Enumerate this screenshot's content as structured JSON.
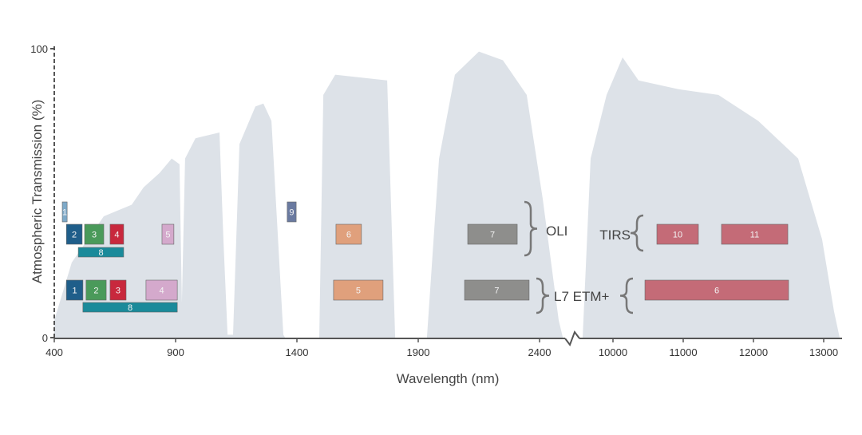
{
  "chart_data": {
    "type": "area",
    "xlabel": "Wavelength (nm)",
    "ylabel": "Atmospheric Transmission (%)",
    "ylim": [
      0,
      100
    ],
    "y_ticks": [
      "0",
      "100"
    ],
    "x_ticks_left": [
      400,
      900,
      1400,
      1900,
      2400
    ],
    "x_ticks_right": [
      10000,
      11000,
      12000,
      13000
    ],
    "axis_break": true,
    "colors": {
      "transmission": "#dde2e8",
      "axis": "#555555"
    },
    "transmission_left": [
      [
        400,
        0
      ],
      [
        400,
        6
      ],
      [
        472,
        26
      ],
      [
        604,
        42
      ],
      [
        719,
        46
      ],
      [
        768,
        52
      ],
      [
        834,
        57
      ],
      [
        884,
        62
      ],
      [
        916,
        60
      ],
      [
        926,
        12
      ],
      [
        939,
        62
      ],
      [
        982,
        69
      ],
      [
        1081,
        71
      ],
      [
        1097,
        34
      ],
      [
        1114,
        1
      ],
      [
        1137,
        1
      ],
      [
        1163,
        67
      ],
      [
        1229,
        80
      ],
      [
        1262,
        81
      ],
      [
        1295,
        75
      ],
      [
        1344,
        1
      ],
      [
        1351,
        0
      ],
      [
        1492,
        0
      ],
      [
        1509,
        84
      ],
      [
        1558,
        91
      ],
      [
        1772,
        89
      ],
      [
        1805,
        0
      ],
      [
        1936,
        0
      ],
      [
        1986,
        62
      ],
      [
        2051,
        91
      ],
      [
        2150,
        99
      ],
      [
        2249,
        96
      ],
      [
        2347,
        84
      ],
      [
        2413,
        48
      ],
      [
        2479,
        6
      ],
      [
        2496,
        0
      ]
    ],
    "transmission_right": [
      [
        9568,
        0
      ],
      [
        9682,
        62
      ],
      [
        9909,
        84
      ],
      [
        10136,
        97
      ],
      [
        10364,
        89
      ],
      [
        10932,
        86
      ],
      [
        11500,
        84
      ],
      [
        12068,
        75
      ],
      [
        12636,
        62
      ],
      [
        12977,
        34
      ],
      [
        13148,
        9
      ],
      [
        13227,
        0
      ]
    ],
    "groups": [
      {
        "label": "OLI",
        "bands": [
          {
            "name": "1",
            "range": [
              433,
              453
            ],
            "color": "#7ea9c8",
            "row": "top"
          },
          {
            "name": "2",
            "range": [
              450,
              515
            ],
            "color": "#1f5e8a",
            "row": "mid"
          },
          {
            "name": "3",
            "range": [
              525,
              604
            ],
            "color": "#4a9a5a",
            "row": "mid"
          },
          {
            "name": "4",
            "range": [
              630,
              686
            ],
            "color": "#c8283d",
            "row": "mid"
          },
          {
            "name": "5",
            "range": [
              844,
              893
            ],
            "color": "#d4a9cc",
            "row": "mid"
          },
          {
            "name": "8",
            "range": [
              499,
              686
            ],
            "color": "#1a8a9a",
            "row": "low"
          },
          {
            "name": "9",
            "range": [
              1360,
              1397
            ],
            "color": "#6a7aa0",
            "row": "top"
          },
          {
            "name": "6",
            "range": [
              1561,
              1666
            ],
            "color": "#e0a07c",
            "row": "mid"
          },
          {
            "name": "7",
            "range": [
              2104,
              2308
            ],
            "color": "#8e8e8c",
            "row": "mid"
          }
        ]
      },
      {
        "label": "TIRS",
        "bands": [
          {
            "name": "10",
            "range": [
              10625,
              11216
            ],
            "color": "#c46b77",
            "row": "mid"
          },
          {
            "name": "11",
            "range": [
              11545,
              12489
            ],
            "color": "#c46b77",
            "row": "mid"
          }
        ]
      },
      {
        "label": "L7 ETM+",
        "bands": [
          {
            "name": "1",
            "range": [
              450,
              518
            ],
            "color": "#1f5e8a",
            "row": "mid"
          },
          {
            "name": "2",
            "range": [
              531,
              614
            ],
            "color": "#4a9a5a",
            "row": "mid"
          },
          {
            "name": "3",
            "range": [
              630,
              696
            ],
            "color": "#c8283d",
            "row": "mid"
          },
          {
            "name": "4",
            "range": [
              778,
              907
            ],
            "color": "#d4a9cc",
            "row": "mid"
          },
          {
            "name": "8",
            "range": [
              518,
              907
            ],
            "color": "#1a8a9a",
            "row": "low"
          },
          {
            "name": "5",
            "range": [
              1551,
              1755
            ],
            "color": "#e0a07c",
            "row": "mid"
          },
          {
            "name": "7",
            "range": [
              2091,
              2357
            ],
            "color": "#8e8e8c",
            "row": "mid"
          },
          {
            "name": "6",
            "range": [
              10455,
              12500
            ],
            "color": "#c46b77",
            "row": "mid"
          }
        ]
      }
    ]
  }
}
